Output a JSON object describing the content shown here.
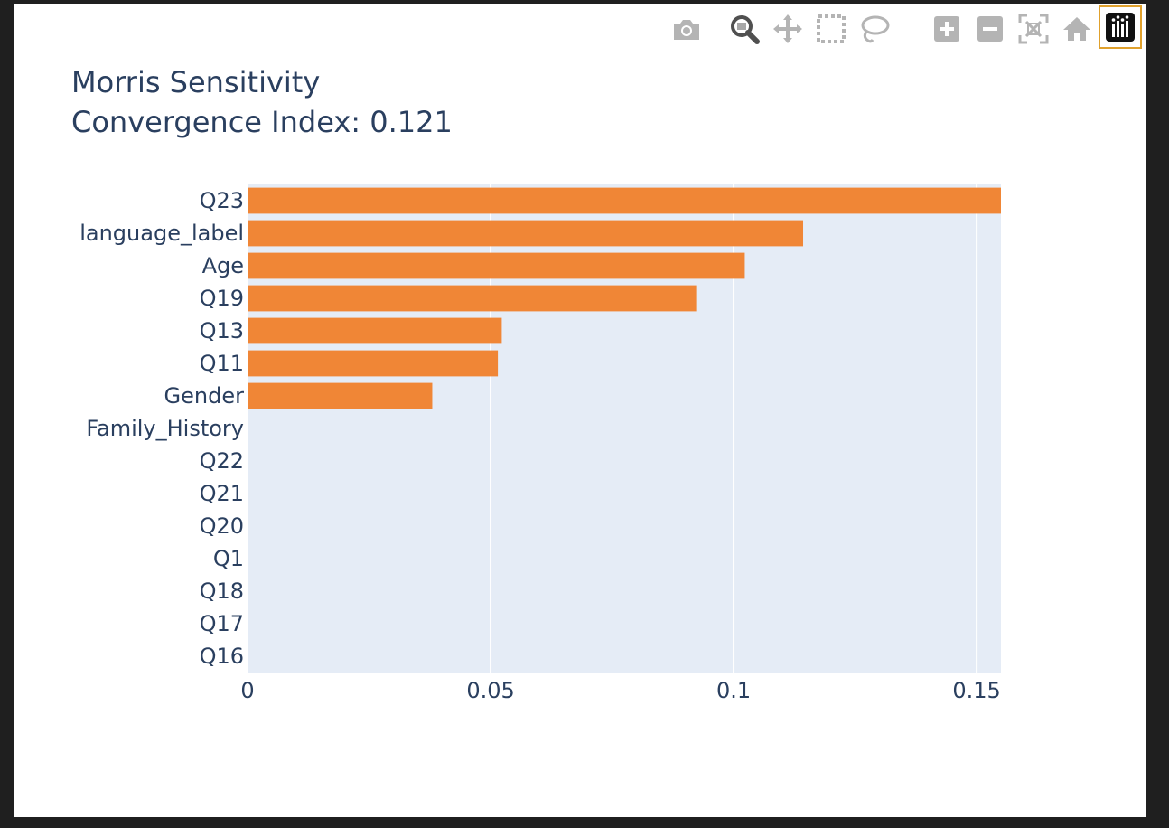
{
  "modebar": {
    "buttons": [
      "camera-icon",
      "zoom-icon",
      "pan-icon",
      "box-select-icon",
      "lasso-icon",
      "zoom-in-icon",
      "zoom-out-icon",
      "autoscale-icon",
      "home-icon",
      "plotly-logo-icon"
    ]
  },
  "colors": {
    "bar": "#f08636",
    "plot_bg": "#e5ecf6",
    "text": "#2a3f5f",
    "grid": "#ffffff",
    "modebar_icon": "#b4b4b4",
    "modebar_active": "#505050"
  },
  "chart_data": {
    "type": "bar",
    "orientation": "horizontal",
    "title": "Morris Sensitivity",
    "subtitle": "Convergence Index: 0.121",
    "xlabel": "",
    "ylabel": "",
    "categories": [
      "Q23",
      "language_label",
      "Age",
      "Q19",
      "Q13",
      "Q11",
      "Gender",
      "Family_History",
      "Q22",
      "Q21",
      "Q20",
      "Q1",
      "Q18",
      "Q17",
      "Q16"
    ],
    "values": [
      0.155,
      0.1143,
      0.1023,
      0.0923,
      0.0523,
      0.0515,
      0.038,
      0,
      0,
      0,
      0,
      0,
      0,
      0,
      0
    ],
    "xlim": [
      0,
      0.155
    ],
    "xticks": [
      0,
      0.05,
      0.1,
      0.15
    ],
    "xtick_labels": [
      "0",
      "0.05",
      "0.1",
      "0.15"
    ],
    "grid": "vertical"
  }
}
